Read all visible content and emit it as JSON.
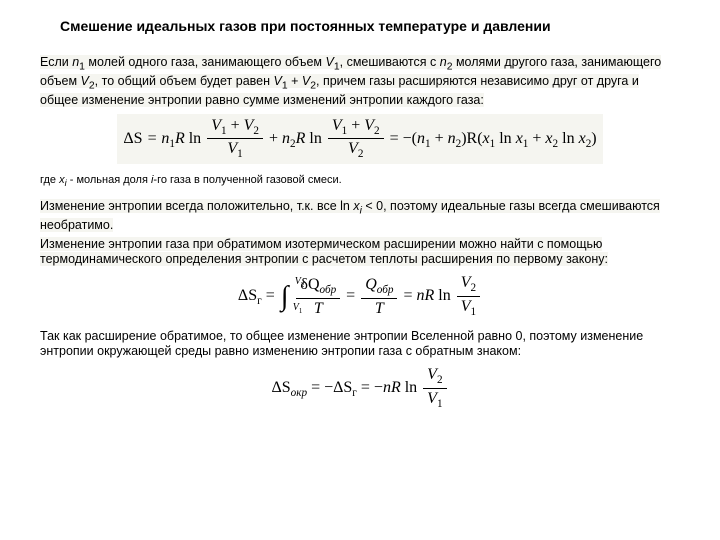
{
  "title": "Смешение идеальных газов при постоянных температуре и давлении",
  "para1_a": "Если ",
  "para1_n1": "n",
  "para1_b": " молей одного газа, занимающего объем ",
  "para1_V1": "V",
  "para1_c": ", смешиваются с ",
  "para1_n2": "n",
  "para1_d": " молями другого газа, занимающего объем ",
  "para1_V2": "V",
  "para1_e": ", то общий объем будет равен ",
  "para1_Vsum_a": "V",
  "para1_plus": " + ",
  "para1_Vsum_b": "V",
  "para1_f": ", причем газы расширяются независимо друг от друга и общее изменение энтропии равно сумме изменений энтропии каждого газа:",
  "eq1": {
    "dS": "ΔS",
    "eq": " = ",
    "n1R": "n",
    "sub1": "1",
    "R": "R",
    "ln": " ln",
    "num1a": "V",
    "num1plus": " + ",
    "num1b": "V",
    "den1": "V",
    "plus": " + ",
    "n2R": "n",
    "sub2": "2",
    "num2a": "V",
    "num2plus": " + ",
    "num2b": "V",
    "den2": "V",
    "rhs_eq": " = −(",
    "rhs_n1": "n",
    "rhs_plus": " + ",
    "rhs_n2": "n",
    "rhs_close": ")R(",
    "x1": "x",
    "lnx1": " ln ",
    "x1b": "x",
    "mid_plus": " + ",
    "x2": "x",
    "lnx2": " ln ",
    "x2b": "x",
    "end": ")"
  },
  "note1_a": "где ",
  "note1_xi": "x",
  "note1_sub": "i",
  "note1_b": " - мольная доля ",
  "note1_i": "i",
  "note1_c": "-го газа в полученной газовой смеси.",
  "para2_a": "Изменение энтропии всегда положительно, т.к. все ln ",
  "para2_xi": "x",
  "para2_sub": "i",
  "para2_b": " < 0, поэтому идеальные газы всегда смешиваются необратимо.",
  "para3": "Изменение энтропии газа при обратимом изотермическом расширении можно найти с помощью термодинамического определения энтропии с расчетом теплоты расширения по первому закону:",
  "eq2": {
    "dS": "ΔS",
    "sub_g": "г",
    "eq": " = ",
    "ub": "V",
    "ub_sub": "2",
    "lb": "V",
    "lb_sub": "1",
    "dQ": "δQ",
    "obr": "обр",
    "T": "T",
    "eq2": " = ",
    "Q": "Q",
    "obr2": "обр",
    "eq3": " = ",
    "nR": "nR",
    "ln": " ln",
    "num": "V",
    "num_sub": "2",
    "den": "V",
    "den_sub": "1"
  },
  "para4": "Так как расширение обратимое, то общее изменение энтропии Вселенной равно 0, поэтому изменение энтропии окружающей среды равно изменению энтропии газа с обратным знаком:",
  "eq3": {
    "dS": "ΔS",
    "okr": "окр",
    "eq": " = −",
    "dS2": "ΔS",
    "sub_g": "г",
    "eq2": " = −",
    "nR": "nR",
    "ln": " ln",
    "num": "V",
    "num_sub": "2",
    "den": "V",
    "den_sub": "1"
  },
  "colors": {
    "bg": "#ffffff",
    "text": "#000000",
    "highlight": "#f5f5f0"
  }
}
